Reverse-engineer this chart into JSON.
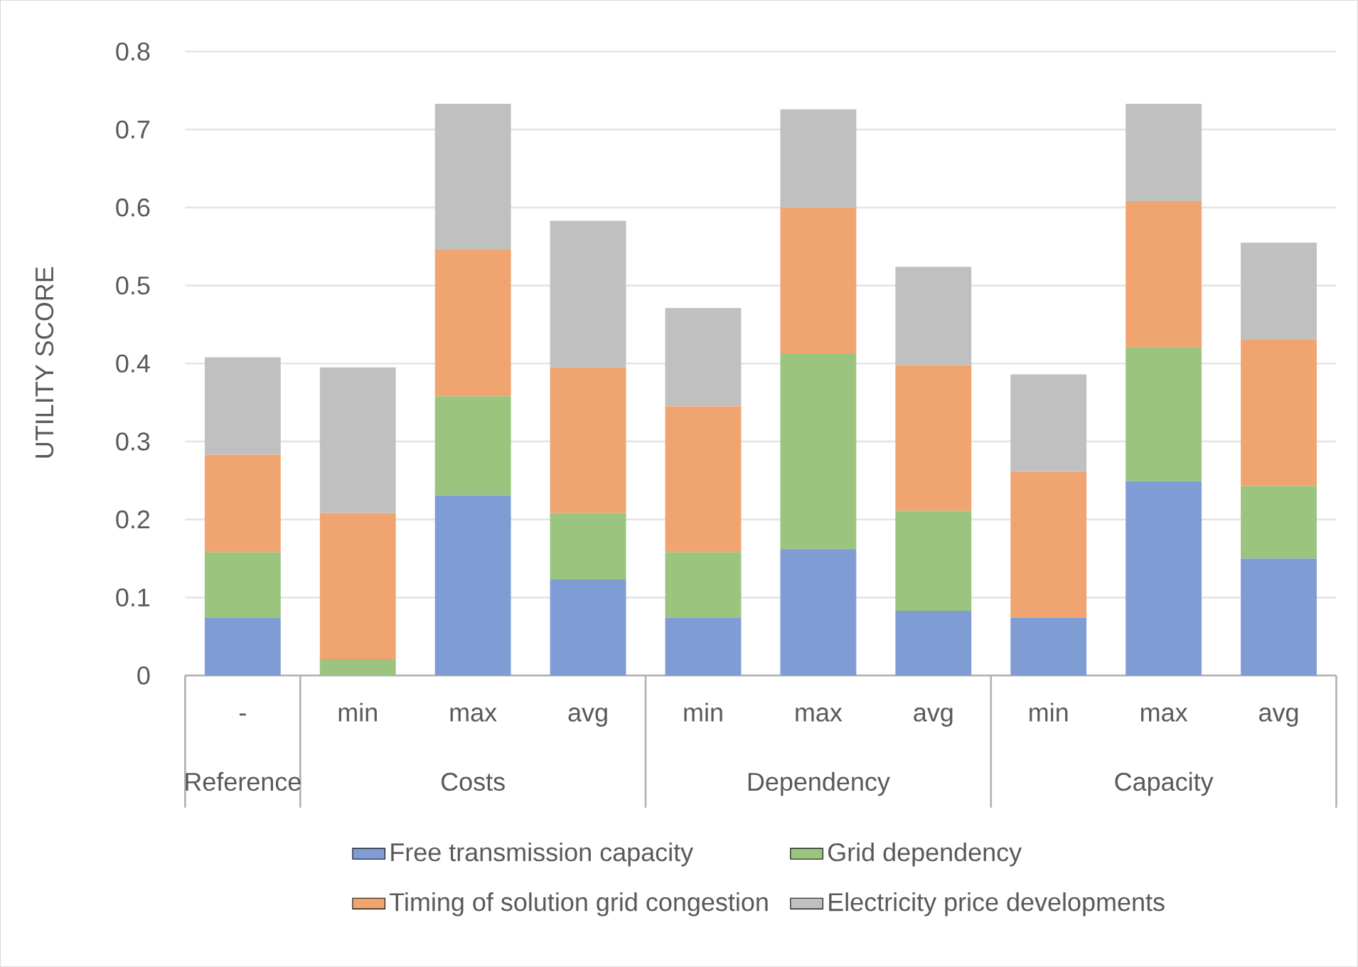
{
  "chart_data": {
    "type": "bar",
    "stacked": true,
    "ylabel": "UTILITY SCORE",
    "categories": [
      "-",
      "min",
      "max",
      "avg",
      "min",
      "max",
      "avg",
      "min",
      "max",
      "avg"
    ],
    "annotations": [
      "Reference",
      "Costs",
      "Dependency",
      "Capacity"
    ],
    "series": [
      {
        "name": "Free transmission capacity",
        "color": "#7f9dd4",
        "values": [
          0.074,
          0,
          0.231,
          0.123,
          0.074,
          0.162,
          0.083,
          0.074,
          0.249,
          0.15
        ]
      },
      {
        "name": "Grid dependency",
        "color": "#9bc47f",
        "values": [
          0.084,
          0.021,
          0.127,
          0.085,
          0.084,
          0.251,
          0.128,
          0,
          0.172,
          0.093
        ]
      },
      {
        "name": "Timing of solution grid congestion",
        "color": "#f0a46f",
        "values": [
          0.125,
          0.187,
          0.188,
          0.187,
          0.187,
          0.187,
          0.187,
          0.187,
          0.187,
          0.188
        ]
      },
      {
        "name": "Electricity price developments",
        "color": "#c0c0c0",
        "values": [
          0.125,
          0.187,
          0.187,
          0.188,
          0.126,
          0.126,
          0.126,
          0.125,
          0.125,
          0.124
        ]
      }
    ],
    "ylim": [
      0,
      0.8
    ],
    "yticks": [
      0,
      0.1,
      0.2,
      0.3,
      0.4,
      0.5,
      0.6,
      0.7,
      0.8
    ],
    "grid": "y",
    "legend": "bottom"
  }
}
